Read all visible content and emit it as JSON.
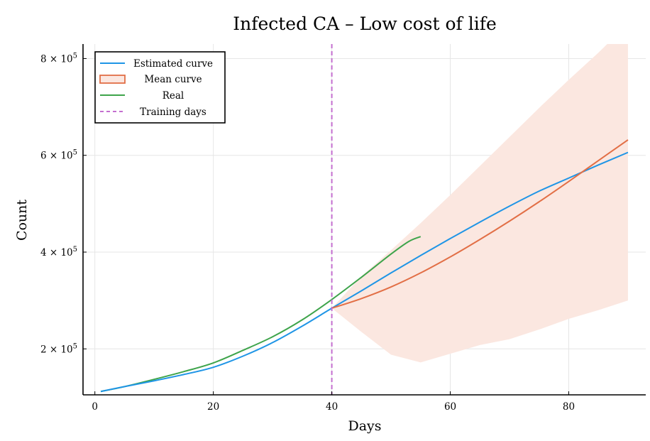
{
  "chart_data": {
    "type": "line",
    "title": "Infected CA – Low cost of life",
    "xlabel": "Days",
    "ylabel": "Count",
    "xlim": [
      -2,
      93
    ],
    "ylim": [
      105000,
      830000
    ],
    "xticks": [
      0,
      20,
      40,
      60,
      80
    ],
    "yticks": [
      {
        "value": 200000,
        "mantissa": "2",
        "times": "×",
        "base": "10",
        "exp": "5"
      },
      {
        "value": 400000,
        "mantissa": "4",
        "times": "×",
        "base": "10",
        "exp": "5"
      },
      {
        "value": 600000,
        "mantissa": "6",
        "times": "×",
        "base": "10",
        "exp": "5"
      },
      {
        "value": 800000,
        "mantissa": "8",
        "times": "×",
        "base": "10",
        "exp": "5"
      }
    ],
    "grid": true,
    "legend_position": "top-left",
    "colors": {
      "estimated": "#1f95e6",
      "mean": "#e26f46",
      "band": "#fbe7e0",
      "real": "#3ea44b",
      "training": "#c46fcf"
    },
    "series": [
      {
        "name": "Estimated curve",
        "x": [
          1,
          5,
          10,
          15,
          20,
          25,
          30,
          35,
          40,
          45,
          50,
          55,
          60,
          65,
          70,
          75,
          80,
          85,
          90
        ],
        "values": [
          112000,
          122000,
          134000,
          147000,
          162000,
          185000,
          213000,
          247000,
          284000,
          320000,
          357000,
          393000,
          428000,
          462000,
          495000,
          526000,
          553000,
          580000,
          606000
        ]
      },
      {
        "name": "Mean curve",
        "x": [
          40,
          45,
          50,
          55,
          60,
          65,
          70,
          75,
          80,
          85,
          90
        ],
        "values": [
          284000,
          304000,
          328000,
          357000,
          390000,
          426000,
          464000,
          504000,
          546000,
          589000,
          632000
        ],
        "band_lower": [
          284000,
          235000,
          188000,
          172000,
          190000,
          208000,
          220000,
          240000,
          262000,
          280000,
          300000
        ],
        "band_upper": [
          284000,
          350000,
          404000,
          460000,
          518000,
          578000,
          638000,
          698000,
          756000,
          812000,
          872000
        ]
      },
      {
        "name": "Real",
        "x": [
          1,
          5,
          10,
          15,
          20,
          25,
          30,
          35,
          40,
          45,
          50,
          53,
          55
        ],
        "values": [
          112000,
          122000,
          137000,
          153000,
          171000,
          197000,
          225000,
          260000,
          302000,
          348000,
          396000,
          422000,
          432000
        ]
      },
      {
        "name": "Training days",
        "x_value": 40
      }
    ]
  }
}
